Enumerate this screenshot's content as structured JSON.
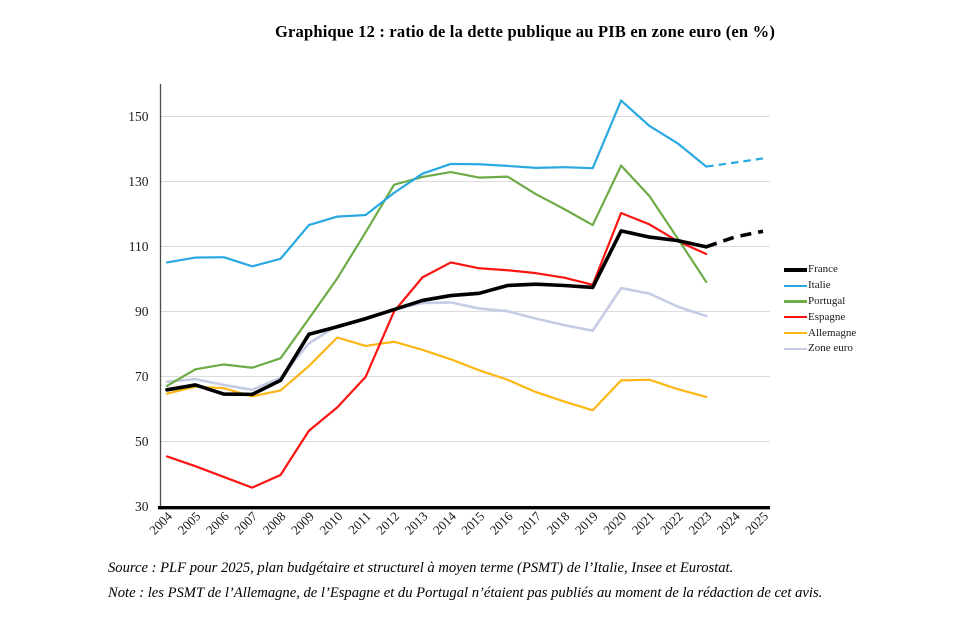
{
  "title": "Graphique 12 : ratio de la dette publique au PIB en zone euro (en %)",
  "source_line": "Source : PLF pour 2025, plan budgétaire et structurel à moyen terme (PSMT) de l’Italie, Insee et Eurostat.",
  "note_line": "Note : les PSMT de l’Allemagne, de l’Espagne et du Portugal n’étaient pas publiés au moment de la rédaction de cet avis.",
  "chart_data": {
    "type": "line",
    "title": "Graphique 12 : ratio de la dette publique au PIB en zone euro (en %)",
    "xlabel": "",
    "ylabel": "",
    "x_years": [
      2004,
      2005,
      2006,
      2007,
      2008,
      2009,
      2010,
      2011,
      2012,
      2013,
      2014,
      2015,
      2016,
      2017,
      2018,
      2019,
      2020,
      2021,
      2022,
      2023,
      2024,
      2025
    ],
    "y_ticks": [
      30,
      50,
      70,
      90,
      110,
      130,
      150
    ],
    "ylim": [
      30,
      160
    ],
    "grid": true,
    "legend_position": "right",
    "note": "2024-2025 values for France and Italie are projections shown as dashed lines",
    "series": [
      {
        "name": "France",
        "color": "#000000",
        "width": 3.6,
        "dash_start_index": 19,
        "values": [
          65.9,
          67.4,
          64.6,
          64.5,
          68.8,
          83.0,
          85.3,
          87.8,
          90.6,
          93.4,
          94.9,
          95.6,
          98.0,
          98.4,
          98.0,
          97.4,
          114.8,
          112.9,
          111.8,
          109.9,
          112.9,
          114.7
        ]
      },
      {
        "name": "Italie",
        "color": "#29A9E1",
        "width": 2.2,
        "dash_start_index": 19,
        "values": [
          105.1,
          106.6,
          106.7,
          103.9,
          106.2,
          116.6,
          119.2,
          119.7,
          126.5,
          132.4,
          135.4,
          135.3,
          134.8,
          134.2,
          134.4,
          134.1,
          154.9,
          147.1,
          141.7,
          134.6,
          135.8,
          137.1
        ]
      },
      {
        "name": "Portugal",
        "color": "#6CAB45",
        "width": 2.2,
        "dash_start_index": null,
        "values": [
          67.1,
          72.2,
          73.7,
          72.7,
          75.6,
          87.8,
          100.2,
          114.4,
          129.0,
          131.4,
          132.9,
          131.2,
          131.5,
          126.1,
          121.5,
          116.6,
          134.9,
          125.5,
          112.4,
          99.1,
          null,
          null
        ]
      },
      {
        "name": "Espagne",
        "color": "#FA1412",
        "width": 2.2,
        "dash_start_index": null,
        "values": [
          45.4,
          42.4,
          39.1,
          35.8,
          39.7,
          53.3,
          60.5,
          69.9,
          90.0,
          100.5,
          105.1,
          103.3,
          102.7,
          101.8,
          100.4,
          98.2,
          120.3,
          116.8,
          111.6,
          107.7,
          null,
          null
        ]
      },
      {
        "name": "Allemagne",
        "color": "#FDB714",
        "width": 2.2,
        "dash_start_index": null,
        "values": [
          64.7,
          66.9,
          66.4,
          63.9,
          65.7,
          73.2,
          82.0,
          79.4,
          80.7,
          78.2,
          75.3,
          71.9,
          69.0,
          65.2,
          62.3,
          59.6,
          68.8,
          69.0,
          66.1,
          63.7,
          null,
          null
        ]
      },
      {
        "name": "Zone euro",
        "color": "#C5CCE4",
        "width": 2.6,
        "dash_start_index": null,
        "values": [
          68.4,
          69.2,
          67.4,
          65.9,
          69.6,
          80.2,
          85.7,
          87.6,
          90.7,
          92.6,
          92.8,
          90.9,
          90.1,
          87.8,
          85.8,
          84.1,
          97.2,
          95.5,
          91.5,
          88.6,
          null,
          null
        ]
      }
    ]
  }
}
